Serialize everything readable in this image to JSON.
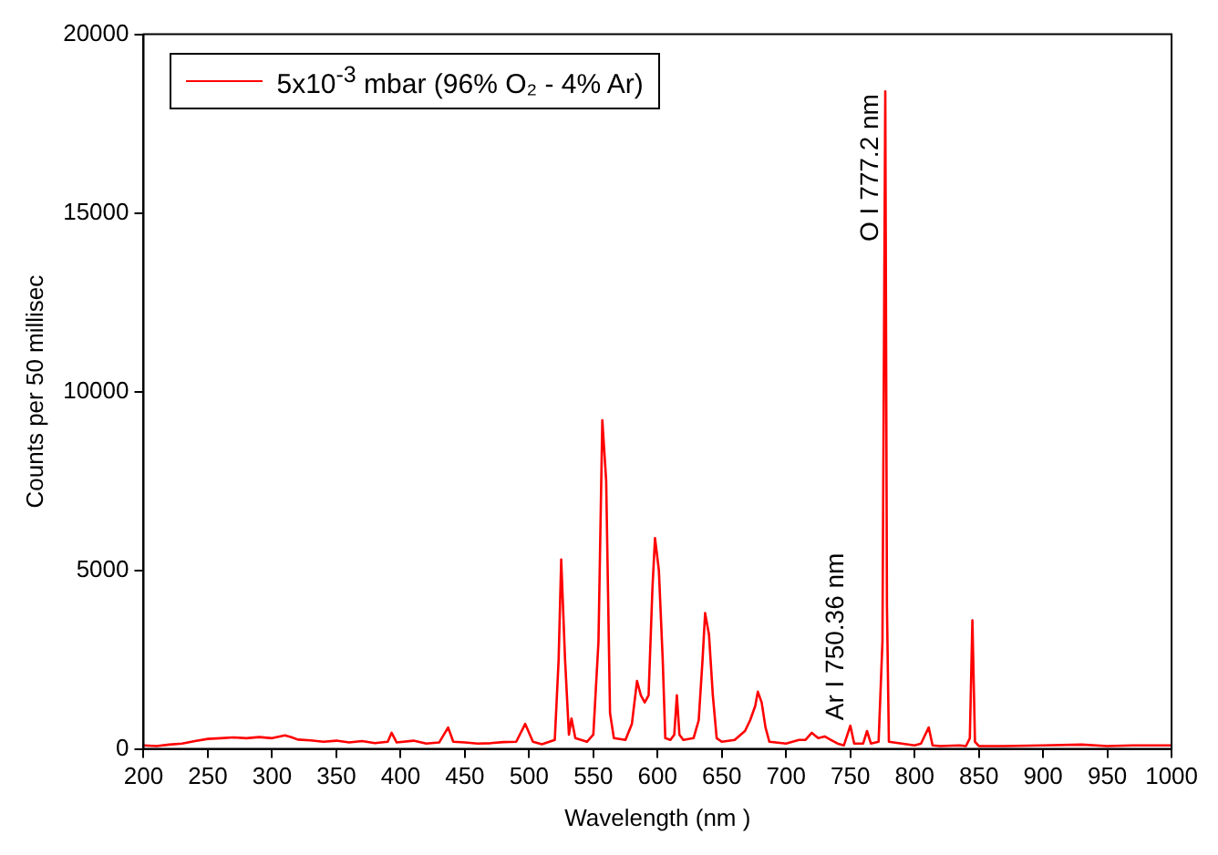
{
  "chart_data": {
    "type": "line",
    "xlabel": "Wavelength (nm )",
    "ylabel": "Counts per 50 millisec",
    "xlim": [
      200,
      1000
    ],
    "xticks": [
      200,
      250,
      300,
      350,
      400,
      450,
      500,
      550,
      600,
      650,
      700,
      750,
      800,
      850,
      900,
      950,
      1000
    ],
    "ylim": [
      0,
      20000
    ],
    "yticks": [
      0,
      5000,
      10000,
      15000,
      20000
    ],
    "grid": false,
    "legend": "top left",
    "marker": "none",
    "line_style": "solid",
    "annotations": [
      {
        "text": "Ar I 750.36 nm",
        "x": 750.36,
        "y": 800
      },
      {
        "text": "O I 777.2 nm",
        "x": 777.2,
        "y": 14200
      }
    ],
    "series": [
      {
        "name": "5x10$^{-3}$ mbar (96% O₂ - 4% Ar)",
        "color": "#ff0000",
        "x": [
          200,
          210,
          220,
          230,
          240,
          250,
          260,
          270,
          280,
          290,
          300,
          310,
          315,
          320,
          330,
          340,
          350,
          360,
          370,
          380,
          390,
          393,
          397,
          410,
          420,
          430,
          437,
          441,
          450,
          460,
          470,
          480,
          490,
          497,
          503,
          510,
          520,
          523,
          525,
          528,
          531,
          533,
          536,
          545,
          550,
          554,
          557,
          560,
          563,
          566,
          575,
          580,
          584,
          587,
          590,
          593,
          596,
          598,
          601,
          604,
          606,
          610,
          613,
          615,
          617,
          620,
          628,
          632,
          635,
          637,
          640,
          643,
          646,
          650,
          660,
          668,
          672,
          676,
          678,
          681,
          684,
          687,
          700,
          710,
          715,
          720,
          725,
          730,
          735,
          740,
          745,
          750,
          753,
          760,
          763,
          766,
          772,
          775,
          777.2,
          778.5,
          780,
          790,
          800,
          805,
          811,
          814,
          820,
          835,
          840,
          843,
          845,
          847,
          850,
          870,
          900,
          930,
          950,
          970,
          1000
        ],
        "values": [
          100,
          80,
          120,
          150,
          220,
          280,
          300,
          320,
          300,
          330,
          300,
          380,
          330,
          260,
          240,
          200,
          230,
          180,
          220,
          160,
          200,
          450,
          180,
          230,
          150,
          180,
          600,
          200,
          180,
          150,
          160,
          190,
          200,
          700,
          200,
          130,
          250,
          2500,
          5300,
          2500,
          400,
          850,
          300,
          200,
          400,
          3000,
          9200,
          7500,
          1000,
          300,
          250,
          700,
          1900,
          1500,
          1300,
          1500,
          4500,
          5900,
          5000,
          2500,
          300,
          250,
          400,
          1500,
          400,
          250,
          300,
          800,
          2500,
          3800,
          3200,
          1500,
          300,
          200,
          250,
          500,
          800,
          1200,
          1600,
          1300,
          600,
          200,
          150,
          250,
          250,
          450,
          300,
          350,
          250,
          150,
          100,
          650,
          150,
          150,
          500,
          150,
          200,
          3000,
          18400,
          4000,
          200,
          150,
          100,
          150,
          600,
          100,
          80,
          100,
          80,
          300,
          3600,
          200,
          80,
          80,
          100,
          120,
          80,
          100,
          100
        ]
      }
    ]
  }
}
